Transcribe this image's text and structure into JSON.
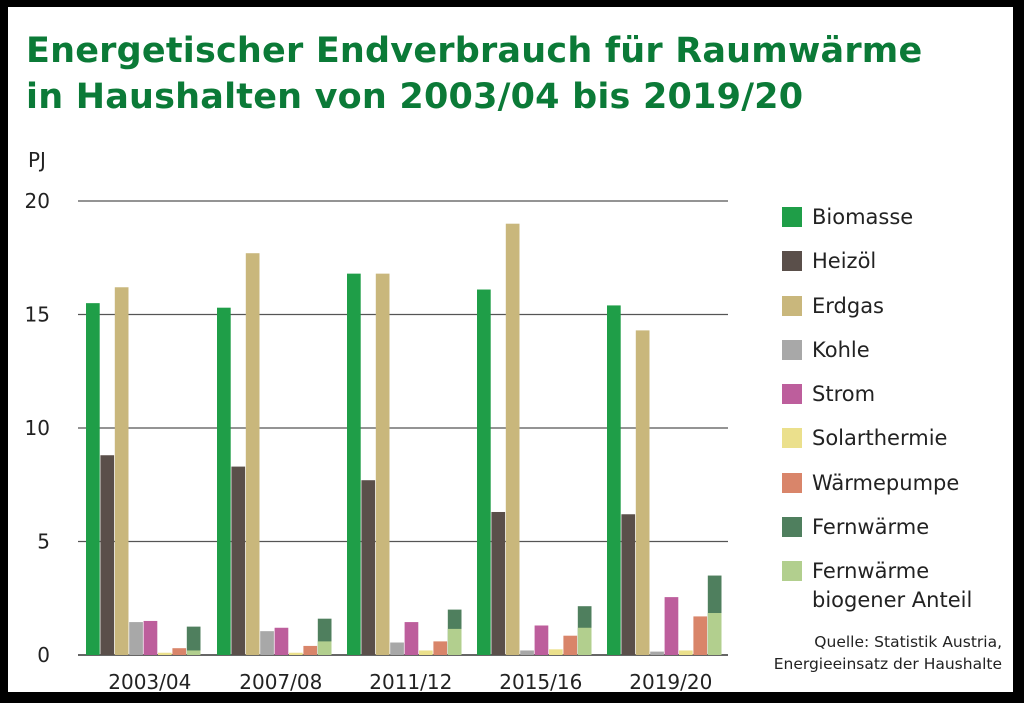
{
  "title_lines": [
    "Energetischer Endverbrauch für Raumwärme",
    "in Haushalten von 2003/04 bis 2019/20"
  ],
  "source_lines": [
    "Quelle: Statistik Austria,",
    "Energieeinsatz der Haushalte"
  ],
  "chart_data": {
    "type": "bar",
    "title": "Energetischer Endverbrauch für Raumwärme in Haushalten von 2003/04 bis 2019/20",
    "ylabel": "PJ",
    "xlabel": "",
    "ylim": [
      0,
      20
    ],
    "yticks": [
      0,
      5,
      10,
      15,
      20
    ],
    "grid": true,
    "legend_position": "right",
    "categories": [
      "2003/04",
      "2007/08",
      "2011/12",
      "2015/16",
      "2019/20"
    ],
    "series": [
      {
        "name": "Biomasse",
        "color": "#1f9e48",
        "values": [
          15.5,
          15.3,
          16.8,
          16.1,
          15.4
        ]
      },
      {
        "name": "Heizöl",
        "color": "#5a4f4a",
        "values": [
          8.8,
          8.3,
          7.7,
          6.3,
          6.2
        ]
      },
      {
        "name": "Erdgas",
        "color": "#c9b77c",
        "values": [
          16.2,
          17.7,
          16.8,
          19.0,
          14.3
        ]
      },
      {
        "name": "Kohle",
        "color": "#a8a8a8",
        "values": [
          1.45,
          1.05,
          0.55,
          0.2,
          0.15
        ]
      },
      {
        "name": "Strom",
        "color": "#bd5e9c",
        "values": [
          1.5,
          1.2,
          1.45,
          1.3,
          2.55
        ]
      },
      {
        "name": "Solarthermie",
        "color": "#ebe08c",
        "values": [
          0.1,
          0.1,
          0.2,
          0.25,
          0.2
        ]
      },
      {
        "name": "Wärmepumpe",
        "color": "#d9856a",
        "values": [
          0.3,
          0.4,
          0.6,
          0.85,
          1.7
        ]
      },
      {
        "name": "Fernwärme",
        "color": "#4f7f5e",
        "values": [
          1.25,
          1.6,
          2.0,
          2.15,
          3.5
        ]
      },
      {
        "name_lines": [
          "Fernwärme",
          "biogener Anteil"
        ],
        "color": "#b2cf8e",
        "values": [
          0.2,
          0.6,
          1.15,
          1.2,
          1.85
        ]
      }
    ],
    "overlay_note": "Fernwärme biogener Anteil is drawn inside the Fernwärme bar"
  }
}
